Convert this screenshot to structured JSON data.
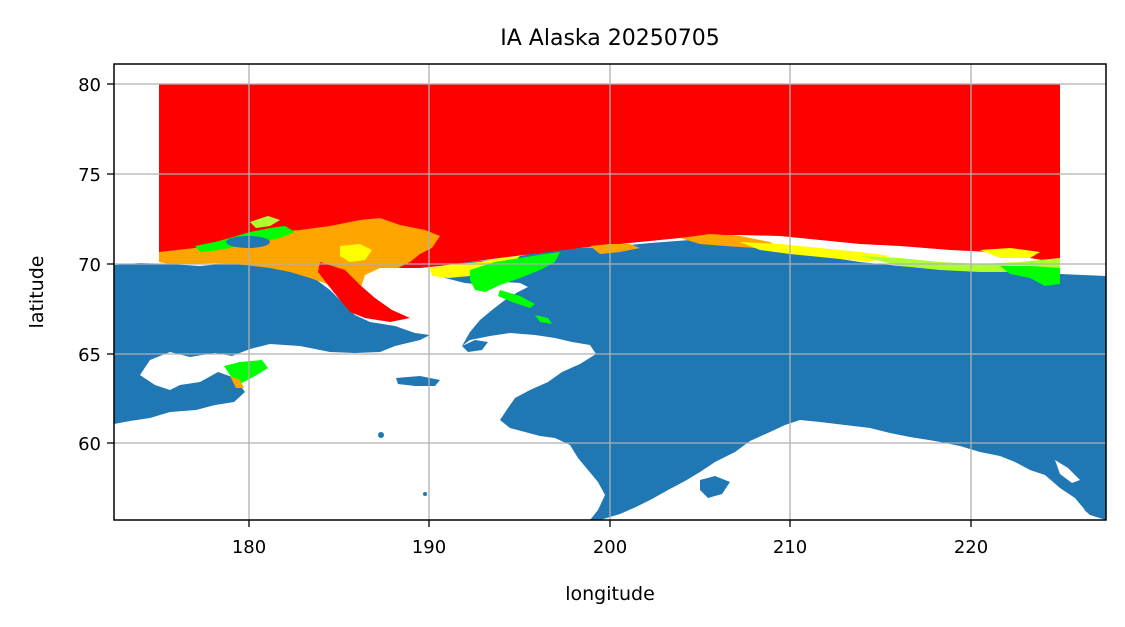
{
  "title": "IA Alaska 20250705",
  "xlabel": "longitude",
  "ylabel": "latitude",
  "colors": {
    "land": "#1f77b4",
    "water": "#ffffff",
    "ice_high": "#ff0000",
    "ice_orange": "#ffa500",
    "ice_yellow": "#ffff00",
    "ice_lime": "#adff2f",
    "ice_green": "#00ff00",
    "grid": "#b0b0b0"
  },
  "chart_data": {
    "type": "map",
    "title": "IA Alaska 20250705",
    "xlabel": "longitude",
    "ylabel": "latitude",
    "xlim": [
      172.5,
      227.5
    ],
    "ylim": [
      55.8,
      81.2
    ],
    "grid": true,
    "x_ticks": [
      {
        "value": 180,
        "label": "180"
      },
      {
        "value": 190,
        "label": "190"
      },
      {
        "value": 200,
        "label": "200"
      },
      {
        "value": 210,
        "label": "210"
      },
      {
        "value": 220,
        "label": "220"
      }
    ],
    "y_ticks": [
      {
        "value": 60,
        "label": "60"
      },
      {
        "value": 65,
        "label": "65"
      },
      {
        "value": 70,
        "label": "70"
      },
      {
        "value": 75,
        "label": "75"
      },
      {
        "value": 80,
        "label": "80"
      }
    ],
    "data_extent": {
      "lon": [
        175,
        225
      ],
      "lat": [
        70,
        80
      ]
    }
  }
}
